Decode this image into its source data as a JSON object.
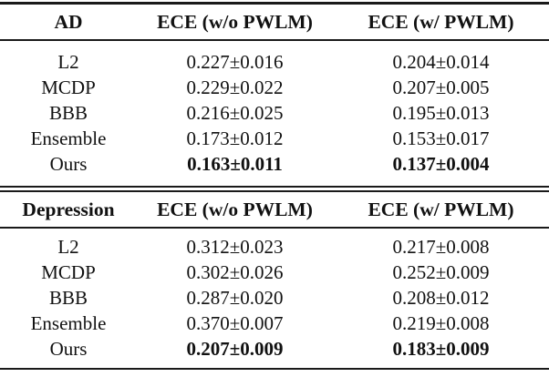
{
  "table": {
    "sections": [
      {
        "title": "AD",
        "header": {
          "col1": "AD",
          "col2": "ECE (w/o PWLM)",
          "col3": "ECE (w/ PWLM)"
        },
        "rows": [
          {
            "method": "L2",
            "ece_without_pwlm": "0.227±0.016",
            "ece_with_pwlm": "0.204±0.014"
          },
          {
            "method": "MCDP",
            "ece_without_pwlm": "0.229±0.022",
            "ece_with_pwlm": "0.207±0.005"
          },
          {
            "method": "BBB",
            "ece_without_pwlm": "0.216±0.025",
            "ece_with_pwlm": "0.195±0.013"
          },
          {
            "method": "Ensemble",
            "ece_without_pwlm": "0.173±0.012",
            "ece_with_pwlm": "0.153±0.017"
          },
          {
            "method": "Ours",
            "ece_without_pwlm": "0.163±0.011",
            "ece_with_pwlm": "0.137±0.004"
          }
        ]
      },
      {
        "title": "Depression",
        "header": {
          "col1": "Depression",
          "col2": "ECE (w/o PWLM)",
          "col3": "ECE (w/ PWLM)"
        },
        "rows": [
          {
            "method": "L2",
            "ece_without_pwlm": "0.312±0.023",
            "ece_with_pwlm": "0.217±0.008"
          },
          {
            "method": "MCDP",
            "ece_without_pwlm": "0.302±0.026",
            "ece_with_pwlm": "0.252±0.009"
          },
          {
            "method": "BBB",
            "ece_without_pwlm": "0.287±0.020",
            "ece_with_pwlm": "0.208±0.012"
          },
          {
            "method": "Ensemble",
            "ece_without_pwlm": "0.370±0.007",
            "ece_with_pwlm": "0.219±0.008"
          },
          {
            "method": "Ours",
            "ece_without_pwlm": "0.207±0.009",
            "ece_with_pwlm": "0.183±0.009"
          }
        ]
      }
    ]
  }
}
